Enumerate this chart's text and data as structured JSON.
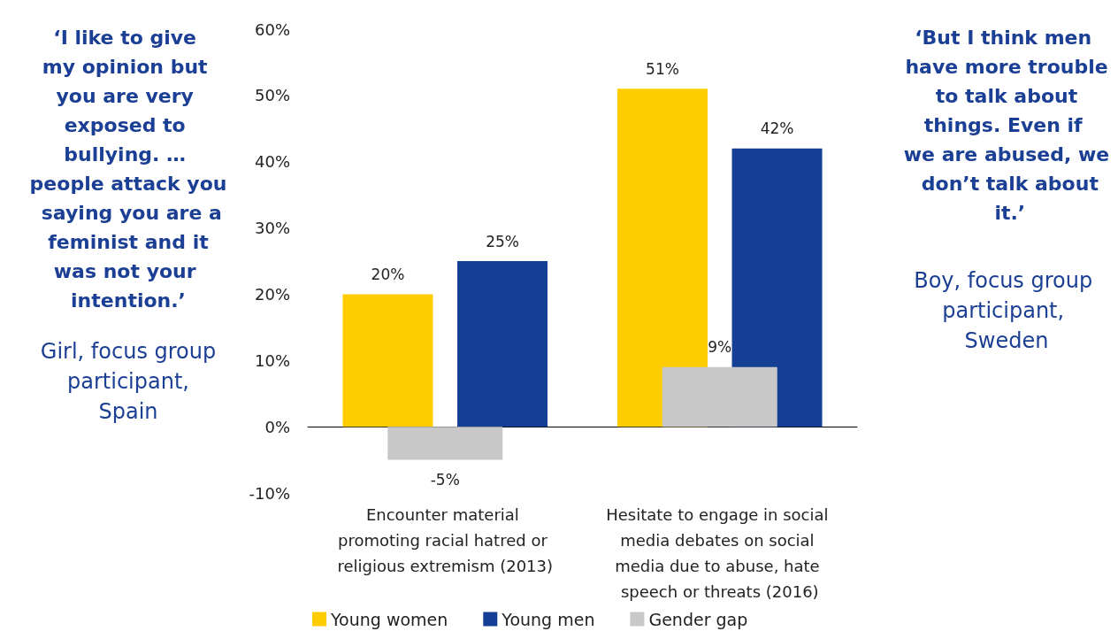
{
  "chart_data": {
    "type": "bar",
    "categories": [
      "Encounter material promoting racial hatred or religious extremism (2013)",
      "Hesitate to engage in social media debates on social media due to abuse, hate speech or threats (2016)"
    ],
    "series": [
      {
        "name": "Young women",
        "color": "#ffcc00",
        "values": [
          20,
          51
        ],
        "value_labels": [
          "20%",
          "51%"
        ]
      },
      {
        "name": "Young men",
        "color": "#143f94",
        "values": [
          25,
          42
        ],
        "value_labels": [
          "25%",
          "42%"
        ]
      },
      {
        "name": "Gender gap",
        "color": "#c8c8c8",
        "values": [
          -5,
          9
        ],
        "value_labels": [
          "-5%",
          "9%"
        ]
      }
    ],
    "ylim": [
      -10,
      60
    ],
    "yticks": [
      {
        "value": -10,
        "label": "-10%"
      },
      {
        "value": 0,
        "label": "0%"
      },
      {
        "value": 10,
        "label": "10%"
      },
      {
        "value": 20,
        "label": "20%"
      },
      {
        "value": 30,
        "label": "30%"
      },
      {
        "value": 40,
        "label": "40%"
      },
      {
        "value": 50,
        "label": "50%"
      },
      {
        "value": 60,
        "label": "60%"
      }
    ],
    "legend": "bottom",
    "annotations": [
      "‘I like to give my opinion but you are very exposed to bullying. … people attack you saying you are a feminist and it was not your intention.’",
      "Girl, focus group participant, Spain",
      "‘But I think men have more trouble to talk about things. Even if we are abused, we don’t talk about it.’",
      "Boy, focus group participant, Sweden"
    ]
  }
}
